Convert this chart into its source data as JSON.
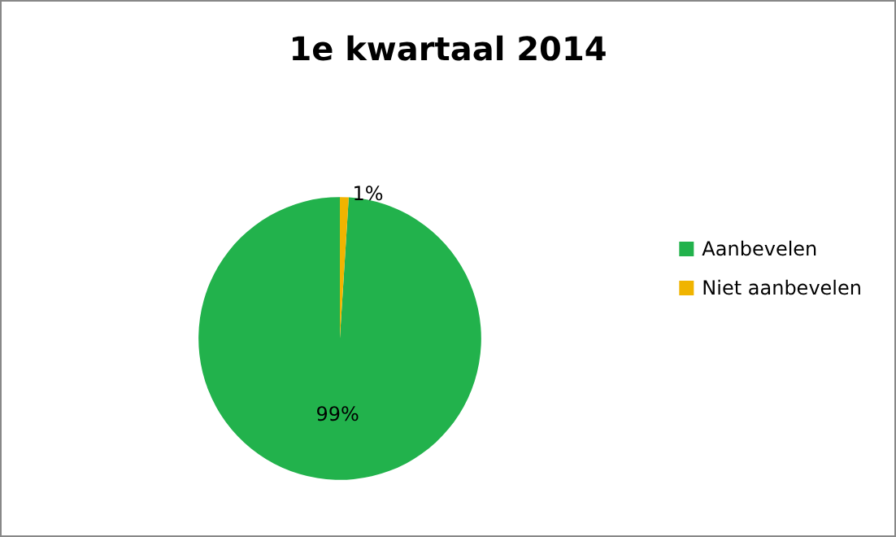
{
  "chart_data": {
    "type": "pie",
    "title": "1e kwartaal 2014",
    "categories": [
      "Aanbevelen",
      "Niet aanbevelen"
    ],
    "values": [
      99,
      1
    ],
    "colors": [
      "#22b24c",
      "#f0b400"
    ],
    "value_labels": [
      "99%",
      "1%"
    ],
    "legend": "right"
  }
}
